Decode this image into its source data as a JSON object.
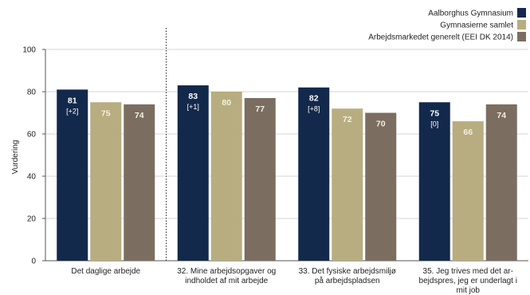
{
  "chart_data": {
    "type": "bar",
    "ylabel": "Vurdering",
    "ylim": [
      0,
      100
    ],
    "yticks": [
      0,
      20,
      40,
      60,
      80,
      100
    ],
    "grid": true,
    "legend_position": "top-right",
    "categories": [
      [
        "Det daglige arbejde"
      ],
      [
        "32. Mine arbejdsopgaver og",
        "indholdet af mit arbejde"
      ],
      [
        "33. Det fysiske arbejdsmiljø",
        "på arbejdspladsen"
      ],
      [
        "35. Jeg trives med det ar-",
        "bejdspres, jeg er underlagt i",
        "mit job"
      ]
    ],
    "series": [
      {
        "name": "Aalborghus Gymnasium",
        "color": "#13294b",
        "values": [
          81,
          83,
          82,
          75
        ],
        "deltas": [
          "[+2]",
          "[+1]",
          "[+8]",
          "[0]"
        ]
      },
      {
        "name": "Gymnasierne samlet",
        "color": "#b8ad80",
        "values": [
          75,
          80,
          72,
          66
        ]
      },
      {
        "name": "Arbejdsmarkedet generelt (EEI DK 2014)",
        "color": "#7b6e60",
        "values": [
          74,
          77,
          70,
          74
        ]
      }
    ]
  }
}
